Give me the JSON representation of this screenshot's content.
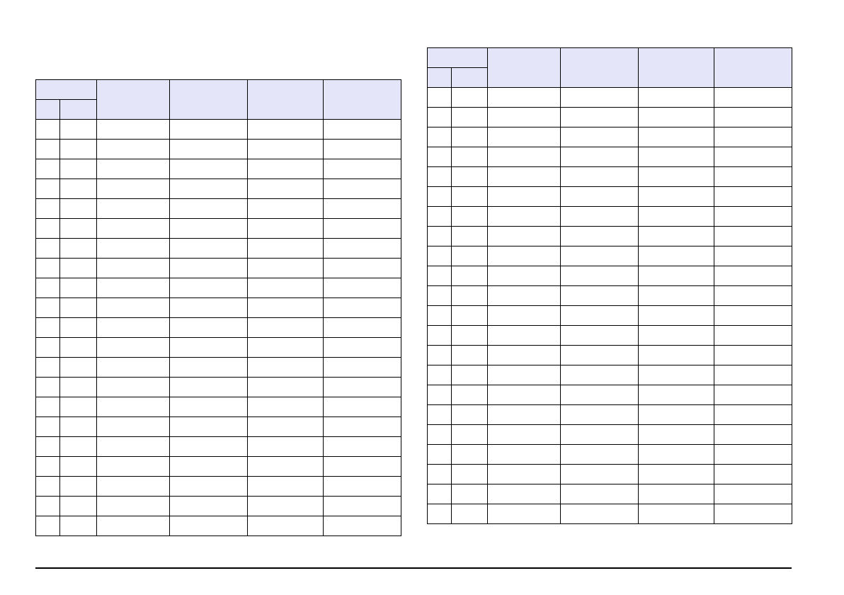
{
  "tables": [
    {
      "headers": [
        "",
        "",
        "",
        "",
        ""
      ],
      "subheaders": [
        "",
        ""
      ],
      "rows": [
        [
          "",
          "",
          "",
          "",
          "",
          ""
        ],
        [
          "",
          "",
          "",
          "",
          "",
          ""
        ],
        [
          "",
          "",
          "",
          "",
          "",
          ""
        ],
        [
          "",
          "",
          "",
          "",
          "",
          ""
        ],
        [
          "",
          "",
          "",
          "",
          "",
          ""
        ],
        [
          "",
          "",
          "",
          "",
          "",
          ""
        ],
        [
          "",
          "",
          "",
          "",
          "",
          ""
        ],
        [
          "",
          "",
          "",
          "",
          "",
          ""
        ],
        [
          "",
          "",
          "",
          "",
          "",
          ""
        ],
        [
          "",
          "",
          "",
          "",
          "",
          ""
        ],
        [
          "",
          "",
          "",
          "",
          "",
          ""
        ],
        [
          "",
          "",
          "",
          "",
          "",
          ""
        ],
        [
          "",
          "",
          "",
          "",
          "",
          ""
        ],
        [
          "",
          "",
          "",
          "",
          "",
          ""
        ],
        [
          "",
          "",
          "",
          "",
          "",
          ""
        ],
        [
          "",
          "",
          "",
          "",
          "",
          ""
        ],
        [
          "",
          "",
          "",
          "",
          "",
          ""
        ],
        [
          "",
          "",
          "",
          "",
          "",
          ""
        ],
        [
          "",
          "",
          "",
          "",
          "",
          ""
        ],
        [
          "",
          "",
          "",
          "",
          "",
          ""
        ],
        [
          "",
          "",
          "",
          "",
          "",
          ""
        ]
      ]
    },
    {
      "headers": [
        "",
        "",
        "",
        "",
        ""
      ],
      "subheaders": [
        "",
        ""
      ],
      "rows": [
        [
          "",
          "",
          "",
          "",
          "",
          ""
        ],
        [
          "",
          "",
          "",
          "",
          "",
          ""
        ],
        [
          "",
          "",
          "",
          "",
          "",
          ""
        ],
        [
          "",
          "",
          "",
          "",
          "",
          ""
        ],
        [
          "",
          "",
          "",
          "",
          "",
          ""
        ],
        [
          "",
          "",
          "",
          "",
          "",
          ""
        ],
        [
          "",
          "",
          "",
          "",
          "",
          ""
        ],
        [
          "",
          "",
          "",
          "",
          "",
          ""
        ],
        [
          "",
          "",
          "",
          "",
          "",
          ""
        ],
        [
          "",
          "",
          "",
          "",
          "",
          ""
        ],
        [
          "",
          "",
          "",
          "",
          "",
          ""
        ],
        [
          "",
          "",
          "",
          "",
          "",
          ""
        ],
        [
          "",
          "",
          "",
          "",
          "",
          ""
        ],
        [
          "",
          "",
          "",
          "",
          "",
          ""
        ],
        [
          "",
          "",
          "",
          "",
          "",
          ""
        ],
        [
          "",
          "",
          "",
          "",
          "",
          ""
        ],
        [
          "",
          "",
          "",
          "",
          "",
          ""
        ],
        [
          "",
          "",
          "",
          "",
          "",
          ""
        ],
        [
          "",
          "",
          "",
          "",
          "",
          ""
        ],
        [
          "",
          "",
          "",
          "",
          "",
          ""
        ],
        [
          "",
          "",
          "",
          "",
          "",
          ""
        ],
        [
          "",
          "",
          "",
          "",
          "",
          ""
        ]
      ]
    }
  ],
  "colors": {
    "header_bg": "#e5e5fa",
    "border": "#000000"
  }
}
